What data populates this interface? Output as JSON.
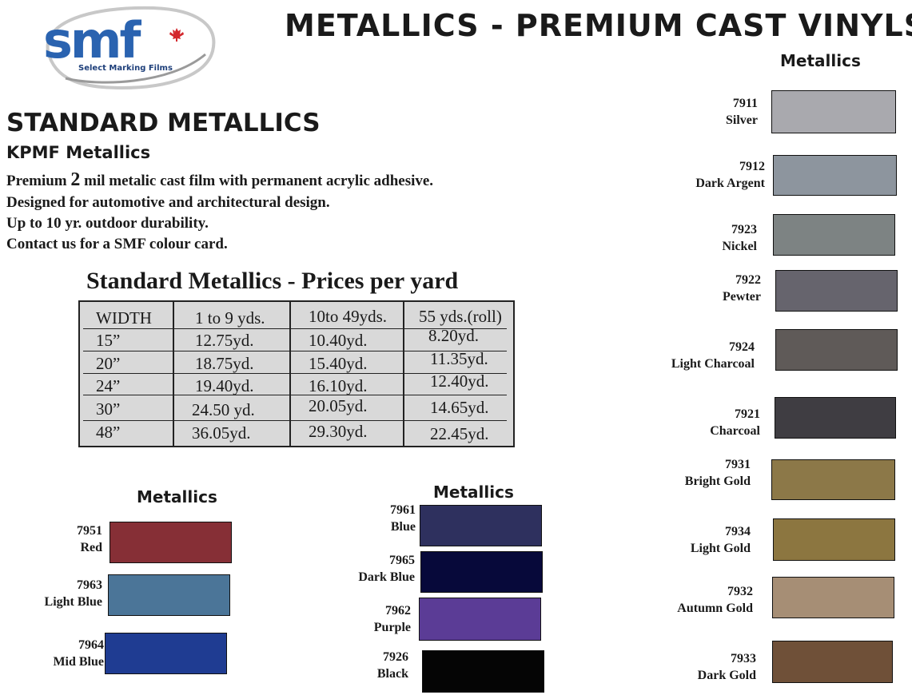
{
  "brand": {
    "logo_text": "smf",
    "logo_tagline": "Select Marking Films"
  },
  "header": {
    "title": "METALLICS - PREMIUM CAST VINYLS"
  },
  "intro": {
    "title": "STANDARD METALLICS",
    "subtitle": "KPMF Metallics",
    "line1_pre": "Premium ",
    "line1_num": "2",
    "line1_post": " mil metalic cast film with permanent acrylic adhesive.",
    "line2": "Designed for automotive and architectural design.",
    "line3": "Up to 10 yr. outdoor durability.",
    "line4": "Contact us for a SMF colour card."
  },
  "pricing": {
    "title": "Standard Metallics  -  Prices per yard",
    "headers": [
      "WIDTH",
      "1 to 9 yds.",
      "10to 49yds.",
      "55 yds.(roll)"
    ],
    "rows": [
      [
        "15”",
        "12.75yd.",
        "10.40yd.",
        "8.20yd."
      ],
      [
        "20”",
        "18.75yd.",
        "15.40yd.",
        "11.35yd."
      ],
      [
        "24”",
        "19.40yd.",
        "16.10yd.",
        "12.40yd."
      ],
      [
        "30”",
        "24.50 yd.",
        "20.05yd.",
        "14.65yd."
      ],
      [
        "48”",
        "36.05yd.",
        "29.30yd.",
        "22.45yd."
      ]
    ]
  },
  "group_left": {
    "heading": "Metallics",
    "items": [
      {
        "code": "7951",
        "name": "Red",
        "color": "#862f36"
      },
      {
        "code": "7963",
        "name": "Light Blue",
        "color": "#4b7598"
      },
      {
        "code": "7964",
        "name": "Mid Blue",
        "color": "#1f3c92"
      }
    ]
  },
  "group_middle": {
    "heading": "Metallics",
    "items": [
      {
        "code": "7961",
        "name": "Blue",
        "color": "#2e305e"
      },
      {
        "code": "7965",
        "name": "Dark Blue",
        "color": "#07093a"
      },
      {
        "code": "7962",
        "name": "Purple",
        "color": "#5b3c96"
      },
      {
        "code": "7926",
        "name": "Black",
        "color": "#050505"
      }
    ]
  },
  "group_right": {
    "heading": "Metallics",
    "items": [
      {
        "code": "7911",
        "name": "Silver",
        "color": "#a9a9ae"
      },
      {
        "code": "7912",
        "name": "Dark Argent",
        "color": "#8d959e"
      },
      {
        "code": "7923",
        "name": "Nickel",
        "color": "#7d8383"
      },
      {
        "code": "7922",
        "name": "Pewter",
        "color": "#66646d"
      },
      {
        "code": "7924",
        "name": "Light Charcoal",
        "color": "#5f5a58"
      },
      {
        "code": "7921",
        "name": "Charcoal",
        "color": "#3f3d42"
      },
      {
        "code": "7931",
        "name": "Bright Gold",
        "color": "#8c7848"
      },
      {
        "code": "7934",
        "name": "Light Gold",
        "color": "#8c7640"
      },
      {
        "code": "7932",
        "name": "Autumn Gold",
        "color": "#a68e75"
      },
      {
        "code": "7933",
        "name": "Dark Gold",
        "color": "#6f5038"
      }
    ]
  }
}
